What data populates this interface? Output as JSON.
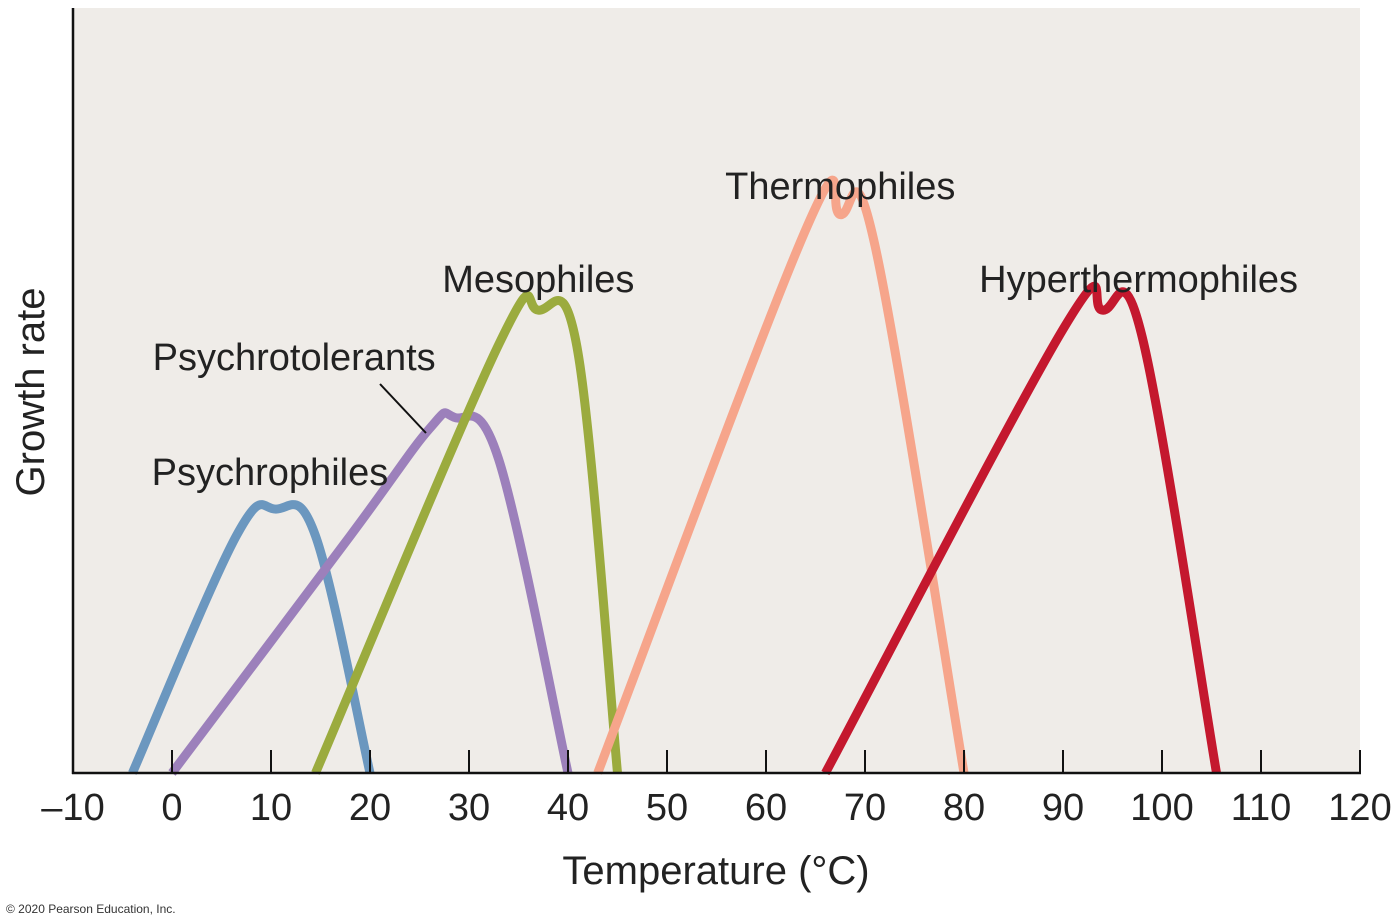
{
  "chart_data": {
    "type": "line",
    "title": "",
    "xlabel": "Temperature (°C)",
    "ylabel": "Growth rate",
    "xlim": [
      -10,
      120
    ],
    "xticks": [
      -10,
      0,
      10,
      20,
      30,
      40,
      50,
      60,
      70,
      80,
      90,
      100,
      110,
      120
    ],
    "xtick_labels": [
      "–10",
      "0",
      "10",
      "20",
      "30",
      "40",
      "50",
      "60",
      "70",
      "80",
      "90",
      "100",
      "110",
      "120"
    ],
    "ylim": [
      0,
      1
    ],
    "grid": false,
    "legend": "none",
    "background": "#efece8",
    "series": [
      {
        "name": "Psychrophiles",
        "color": "#6b97bf",
        "points": [
          [
            -4,
            0
          ],
          [
            6.5,
            0.31
          ],
          [
            10.5,
            0.345
          ],
          [
            14.5,
            0.31
          ],
          [
            20,
            0
          ]
        ]
      },
      {
        "name": "Psychrotolerants",
        "color": "#9c80bb",
        "points": [
          [
            0,
            0
          ],
          [
            18,
            0.31
          ],
          [
            26,
            0.45
          ],
          [
            28.5,
            0.465
          ],
          [
            33,
            0.41
          ],
          [
            40,
            0
          ]
        ]
      },
      {
        "name": "Mesophiles",
        "color": "#9bab3e",
        "points": [
          [
            14.5,
            0
          ],
          [
            33,
            0.56
          ],
          [
            37,
            0.605
          ],
          [
            41,
            0.55
          ],
          [
            45,
            0
          ]
        ]
      },
      {
        "name": "Thermophiles",
        "color": "#f6a58b",
        "points": [
          [
            43,
            0
          ],
          [
            64,
            0.71
          ],
          [
            67.5,
            0.73
          ],
          [
            71,
            0.69
          ],
          [
            80,
            0
          ]
        ]
      },
      {
        "name": "Hyperthermophiles",
        "color": "#c4182e",
        "points": [
          [
            66,
            0
          ],
          [
            90,
            0.58
          ],
          [
            94,
            0.605
          ],
          [
            98,
            0.57
          ],
          [
            105.5,
            0
          ]
        ]
      }
    ]
  },
  "copyright": "© 2020 Pearson Education, Inc."
}
